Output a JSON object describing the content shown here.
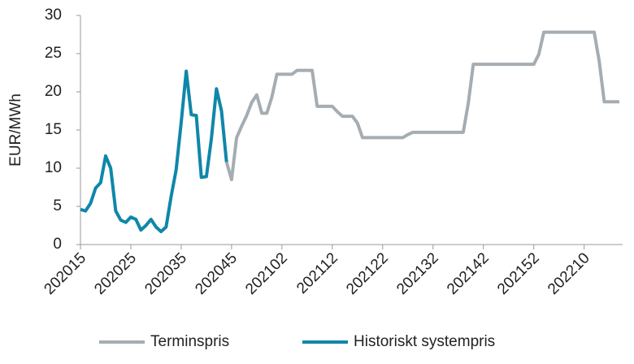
{
  "chart_data": {
    "type": "line",
    "y_label": "EUR/MWh",
    "categories": [
      "202015",
      null,
      null,
      null,
      null,
      null,
      null,
      null,
      null,
      null,
      "202025",
      null,
      null,
      null,
      null,
      null,
      null,
      null,
      null,
      null,
      "202035",
      null,
      null,
      null,
      null,
      null,
      null,
      null,
      null,
      null,
      "202045",
      null,
      null,
      null,
      null,
      null,
      null,
      null,
      null,
      null,
      "202102",
      null,
      null,
      null,
      null,
      null,
      null,
      null,
      null,
      null,
      "202112",
      null,
      null,
      null,
      null,
      null,
      null,
      null,
      null,
      null,
      "202122",
      null,
      null,
      null,
      null,
      null,
      null,
      null,
      null,
      null,
      "202132",
      null,
      null,
      null,
      null,
      null,
      null,
      null,
      null,
      null,
      "202142",
      null,
      null,
      null,
      null,
      null,
      null,
      null,
      null,
      null,
      "202152",
      null,
      null,
      null,
      null,
      null,
      null,
      null,
      null,
      null,
      "202210",
      null,
      null,
      null,
      null,
      null,
      null,
      null
    ],
    "series": [
      {
        "name": "Terminspris",
        "color": "#a5adb2",
        "values": [
          null,
          null,
          null,
          null,
          null,
          null,
          null,
          null,
          null,
          null,
          null,
          null,
          null,
          null,
          null,
          null,
          null,
          null,
          null,
          null,
          null,
          null,
          null,
          null,
          null,
          null,
          null,
          null,
          null,
          10.8,
          8.5,
          14.0,
          15.5,
          16.9,
          18.6,
          19.6,
          17.2,
          17.2,
          19.3,
          22.3,
          22.3,
          22.3,
          22.3,
          22.8,
          22.8,
          22.8,
          22.8,
          18.1,
          18.1,
          18.1,
          18.1,
          17.4,
          16.8,
          16.8,
          16.8,
          15.9,
          14.0,
          14.0,
          14.0,
          14.0,
          14.0,
          14.0,
          14.0,
          14.0,
          14.0,
          14.4,
          14.7,
          14.7,
          14.7,
          14.7,
          14.7,
          14.7,
          14.7,
          14.7,
          14.7,
          14.7,
          14.7,
          18.5,
          23.6,
          23.6,
          23.6,
          23.6,
          23.6,
          23.6,
          23.6,
          23.6,
          23.6,
          23.6,
          23.6,
          23.6,
          23.6,
          24.9,
          27.8,
          27.8,
          27.8,
          27.8,
          27.8,
          27.8,
          27.8,
          27.8,
          27.8,
          27.8,
          27.8,
          24.0,
          18.7,
          18.7,
          18.7,
          18.7
        ]
      },
      {
        "name": "Historiskt systempris",
        "color": "#0f87a9",
        "values": [
          4.6,
          4.4,
          5.4,
          7.4,
          8.1,
          11.6,
          10.0,
          4.4,
          3.2,
          2.9,
          3.6,
          3.3,
          1.9,
          2.5,
          3.3,
          2.3,
          1.7,
          2.3,
          6.3,
          9.8,
          16.0,
          22.7,
          17.0,
          16.9,
          8.8,
          8.9,
          13.9,
          20.4,
          17.5,
          10.8,
          null,
          null,
          null,
          null,
          null,
          null,
          null,
          null,
          null,
          null,
          null,
          null,
          null,
          null,
          null,
          null,
          null,
          null,
          null,
          null,
          null,
          null,
          null,
          null,
          null,
          null,
          null,
          null,
          null,
          null,
          null,
          null,
          null,
          null,
          null,
          null,
          null,
          null,
          null,
          null,
          null,
          null,
          null,
          null,
          null,
          null,
          null,
          null,
          null,
          null,
          null,
          null,
          null,
          null,
          null,
          null,
          null,
          null,
          null,
          null,
          null,
          null,
          null,
          null,
          null,
          null,
          null,
          null,
          null,
          null,
          null,
          null,
          null,
          null,
          null,
          null,
          null,
          null
        ]
      }
    ],
    "ylim": [
      0,
      30
    ],
    "yticks": [
      0,
      5,
      10,
      15,
      20,
      25,
      30
    ],
    "grid": false,
    "legend": "bottom"
  }
}
